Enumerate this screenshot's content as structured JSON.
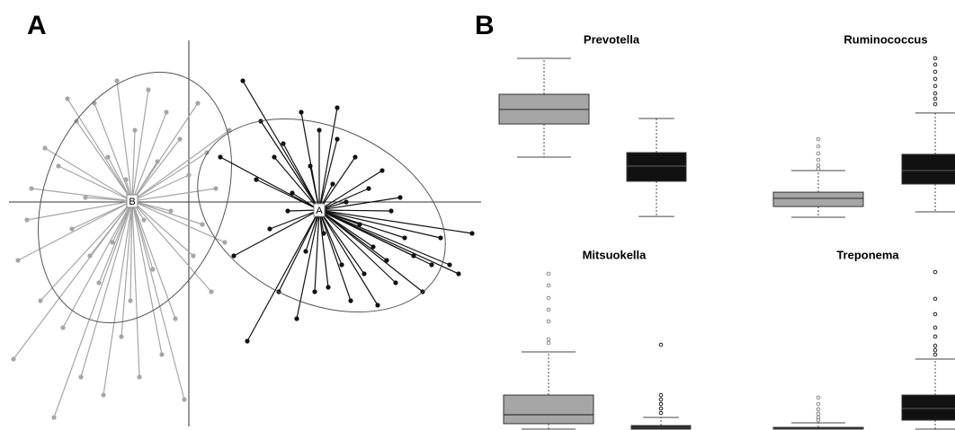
{
  "chart_data": [
    {
      "type": "scatter",
      "panel_label": "A",
      "xlim": [
        -4,
        6.5
      ],
      "ylim": [
        -5,
        3.6
      ],
      "series": [
        {
          "name": "B",
          "color": "#a6a6a6",
          "center": [
            -1.26,
            0.02
          ],
          "ellipse": {
            "cx": -1.2,
            "cy": 0.1,
            "rx": 2.0,
            "ry": 2.9,
            "angle": 22
          },
          "x": [
            -3.9,
            -3.8,
            -3.5,
            -3.3,
            -3.2,
            -3.0,
            -2.9,
            -2.8,
            -2.6,
            -2.5,
            -2.4,
            -2.3,
            -2.1,
            -2.0,
            -1.9,
            -1.8,
            -1.7,
            -1.6,
            -1.5,
            -1.4,
            -1.3,
            -1.2,
            -1.1,
            -1.0,
            -0.9,
            -0.8,
            -0.7,
            -0.6,
            -0.5,
            -0.4,
            -0.3,
            -0.2,
            -0.1,
            0.0,
            0.1,
            0.2,
            0.3,
            0.4,
            0.5,
            0.6,
            0.8,
            0.9,
            -2.2,
            -3.6,
            -2.7
          ],
          "y": [
            -3.5,
            -1.3,
            0.3,
            -2.2,
            1.2,
            -4.8,
            0.8,
            -2.8,
            -0.6,
            1.8,
            -3.9,
            0.1,
            2.2,
            -1.8,
            -4.3,
            1.0,
            -0.9,
            2.7,
            -3.0,
            0.5,
            -2.2,
            1.6,
            -3.9,
            -0.4,
            2.5,
            -1.5,
            0.9,
            -3.4,
            2.0,
            -0.2,
            -2.6,
            1.4,
            -4.4,
            0.6,
            -1.2,
            2.2,
            -0.5,
            1.1,
            -2.0,
            0.3,
            -0.9,
            1.6,
            -1.2,
            -0.4,
            2.3
          ]
        },
        {
          "name": "A",
          "color": "#111111",
          "center": [
            2.9,
            -0.18
          ],
          "ellipse": {
            "cx": 2.95,
            "cy": -0.3,
            "rx": 2.9,
            "ry": 1.95,
            "angle": 25
          },
          "x": [
            1.2,
            1.5,
            0.7,
            1.0,
            1.3,
            1.6,
            1.8,
            2.0,
            2.1,
            2.3,
            2.4,
            2.5,
            2.6,
            2.7,
            2.8,
            2.9,
            3.0,
            3.1,
            3.2,
            3.3,
            3.4,
            3.5,
            3.6,
            3.7,
            3.8,
            3.9,
            4.0,
            4.1,
            4.2,
            4.3,
            4.4,
            4.5,
            4.6,
            4.8,
            5.0,
            5.2,
            5.4,
            5.6,
            5.8,
            6.0,
            6.3,
            1.9,
            2.2,
            4.7,
            3.3
          ],
          "y": [
            2.7,
            0.5,
            1.0,
            -1.2,
            -3.1,
            1.8,
            -0.6,
            -2.0,
            1.3,
            0.2,
            -2.6,
            2.0,
            -1.1,
            0.8,
            -2.0,
            1.6,
            -0.7,
            -1.9,
            0.4,
            1.4,
            -1.4,
            0.0,
            -2.2,
            1.0,
            -0.5,
            -1.6,
            0.3,
            -1.0,
            -2.3,
            0.7,
            -1.3,
            -0.2,
            -1.8,
            -0.8,
            -1.2,
            -2.0,
            -1.4,
            -0.8,
            -1.4,
            -1.6,
            -0.7,
            1.0,
            -0.2,
            0.1,
            2.1
          ]
        }
      ]
    },
    {
      "type": "box",
      "panel_label": "B",
      "title": "Prevotella",
      "ylim": [
        0,
        100
      ],
      "series": [
        {
          "color": "#a6a6a6",
          "min": 39.5,
          "q1": 58.9,
          "median": 67.4,
          "q3": 76.3,
          "max": 97.4,
          "outliers": []
        },
        {
          "color": "#111111",
          "min": 4.7,
          "q1": 25.3,
          "median": 34.2,
          "q3": 42.1,
          "max": 62.1,
          "outliers": []
        }
      ]
    },
    {
      "type": "box",
      "title": "Ruminococcus",
      "ylim": [
        0,
        100
      ],
      "series": [
        {
          "color": "#a6a6a6",
          "min": 4.2,
          "q1": 10.5,
          "median": 15.3,
          "q3": 18.9,
          "max": 31.6,
          "outliers": [
            50,
            45.8,
            41.6,
            37.9,
            34.7,
            32.6
          ]
        },
        {
          "color": "#111111",
          "min": 7.4,
          "q1": 23.7,
          "median": 31.6,
          "q3": 41.1,
          "max": 65.3,
          "outliers": [
            97.4,
            93.7,
            89.5,
            85.3,
            81.1,
            76.8,
            73.7,
            70.5
          ]
        }
      ]
    },
    {
      "type": "box",
      "title": "Mitsuokella",
      "ylim": [
        0,
        100
      ],
      "series": [
        {
          "color": "#a6a6a6",
          "min": 0,
          "q1": 3.4,
          "median": 9.0,
          "q3": 21.3,
          "max": 48.3,
          "outliers": [
            97.2,
            89.9,
            82.0,
            74.7,
            67.4,
            56.2,
            53.9
          ]
        },
        {
          "color": "#111111",
          "min": 0,
          "q1": 0,
          "median": 1.1,
          "q3": 2.2,
          "max": 7.3,
          "outliers": [
            52.8,
            21.3,
            18.5,
            15.7,
            12.9,
            10.1
          ]
        }
      ]
    },
    {
      "type": "box",
      "title": "Treponema",
      "ylim": [
        0,
        100
      ],
      "series": [
        {
          "color": "#a6a6a6",
          "min": 0,
          "q1": 0,
          "median": 0.6,
          "q3": 1.1,
          "max": 3.9,
          "outliers": [
            19.7,
            15.7,
            12.4,
            9.6,
            7.3,
            5.6
          ]
        },
        {
          "color": "#111111",
          "min": 0,
          "q1": 5.6,
          "median": 12.9,
          "q3": 21.3,
          "max": 43.8,
          "outliers": [
            98.3,
            81.5,
            71.9,
            63.5,
            57.9,
            52.2,
            49.4,
            46.6
          ]
        }
      ]
    }
  ]
}
